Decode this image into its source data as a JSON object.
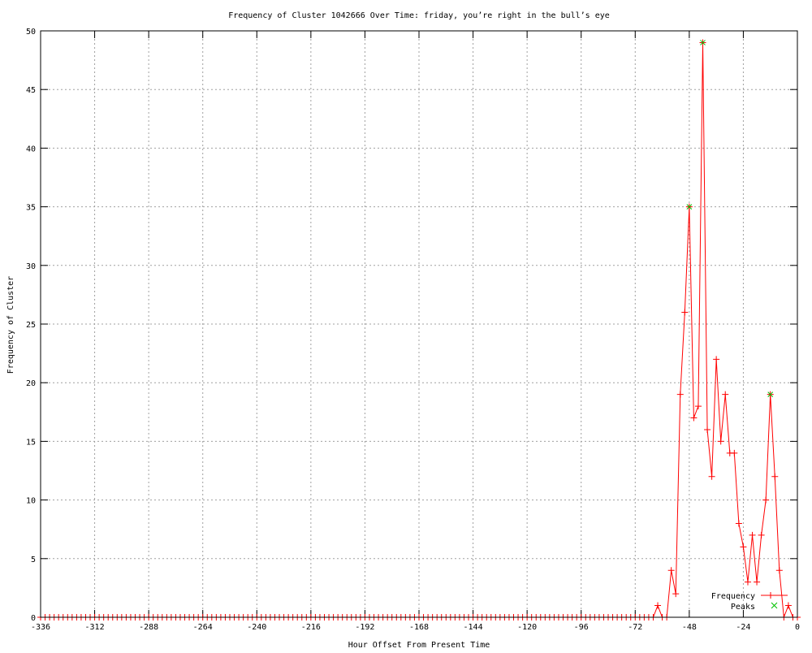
{
  "chart_data": {
    "type": "line",
    "title": "Frequency of Cluster 1042666 Over Time: friday, you’re right in the bull’s eye",
    "xlabel": "Hour Offset From Present Time",
    "ylabel": "Frequency of Cluster",
    "xlim": [
      -336,
      0
    ],
    "ylim": [
      0,
      50
    ],
    "xticks": [
      -336,
      -312,
      -288,
      -264,
      -240,
      -216,
      -192,
      -168,
      -144,
      -120,
      -96,
      -72,
      -48,
      -24,
      0
    ],
    "yticks": [
      0,
      5,
      10,
      15,
      20,
      25,
      30,
      35,
      40,
      45,
      50
    ],
    "grid": true,
    "legend_placement": "bottom-right",
    "series": [
      {
        "name": "Frequency",
        "color": "#ff0000",
        "marker": "plus",
        "x": [
          -336,
          -334,
          -332,
          -330,
          -328,
          -326,
          -324,
          -322,
          -320,
          -318,
          -316,
          -314,
          -312,
          -310,
          -308,
          -306,
          -304,
          -302,
          -300,
          -298,
          -296,
          -294,
          -292,
          -290,
          -288,
          -286,
          -284,
          -282,
          -280,
          -278,
          -276,
          -274,
          -272,
          -270,
          -268,
          -266,
          -264,
          -262,
          -260,
          -258,
          -256,
          -254,
          -252,
          -250,
          -248,
          -246,
          -244,
          -242,
          -240,
          -238,
          -236,
          -234,
          -232,
          -230,
          -228,
          -226,
          -224,
          -222,
          -220,
          -218,
          -216,
          -214,
          -212,
          -210,
          -208,
          -206,
          -204,
          -202,
          -200,
          -198,
          -196,
          -194,
          -192,
          -190,
          -188,
          -186,
          -184,
          -182,
          -180,
          -178,
          -176,
          -174,
          -172,
          -170,
          -168,
          -166,
          -164,
          -162,
          -160,
          -158,
          -156,
          -154,
          -152,
          -150,
          -148,
          -146,
          -144,
          -142,
          -140,
          -138,
          -136,
          -134,
          -132,
          -130,
          -128,
          -126,
          -124,
          -122,
          -120,
          -118,
          -116,
          -114,
          -112,
          -110,
          -108,
          -106,
          -104,
          -102,
          -100,
          -98,
          -96,
          -94,
          -92,
          -90,
          -88,
          -86,
          -84,
          -82,
          -80,
          -78,
          -76,
          -74,
          -72,
          -70,
          -68,
          -66,
          -64,
          -62,
          -60,
          -58,
          -56,
          -54,
          -52,
          -50,
          -48,
          -46,
          -44,
          -42,
          -40,
          -38,
          -36,
          -34,
          -32,
          -30,
          -28,
          -26,
          -24,
          -22,
          -20,
          -18,
          -16,
          -14,
          -12,
          -10,
          -8,
          -6,
          -4,
          -2,
          0
        ],
        "y": [
          0,
          0,
          0,
          0,
          0,
          0,
          0,
          0,
          0,
          0,
          0,
          0,
          0,
          0,
          0,
          0,
          0,
          0,
          0,
          0,
          0,
          0,
          0,
          0,
          0,
          0,
          0,
          0,
          0,
          0,
          0,
          0,
          0,
          0,
          0,
          0,
          0,
          0,
          0,
          0,
          0,
          0,
          0,
          0,
          0,
          0,
          0,
          0,
          0,
          0,
          0,
          0,
          0,
          0,
          0,
          0,
          0,
          0,
          0,
          0,
          0,
          0,
          0,
          0,
          0,
          0,
          0,
          0,
          0,
          0,
          0,
          0,
          0,
          0,
          0,
          0,
          0,
          0,
          0,
          0,
          0,
          0,
          0,
          0,
          0,
          0,
          0,
          0,
          0,
          0,
          0,
          0,
          0,
          0,
          0,
          0,
          0,
          0,
          0,
          0,
          0,
          0,
          0,
          0,
          0,
          0,
          0,
          0,
          0,
          0,
          0,
          0,
          0,
          0,
          0,
          0,
          0,
          0,
          0,
          0,
          0,
          0,
          0,
          0,
          0,
          0,
          0,
          0,
          0,
          0,
          0,
          0,
          0,
          0,
          0,
          0,
          0,
          1,
          0,
          0,
          4,
          2,
          19,
          26,
          35,
          17,
          18,
          49,
          16,
          12,
          22,
          15,
          19,
          14,
          14,
          8,
          6,
          3,
          7,
          3,
          7,
          10,
          19,
          12,
          4,
          0,
          1,
          0,
          0
        ]
      },
      {
        "name": "Peaks",
        "color": "#00c000",
        "marker": "cross",
        "x": [
          -48,
          -42,
          -12
        ],
        "y": [
          35,
          49,
          19
        ]
      }
    ]
  }
}
